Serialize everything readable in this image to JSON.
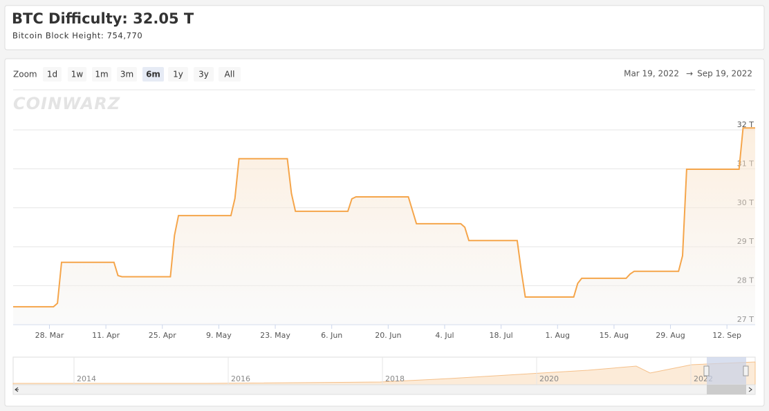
{
  "header": {
    "title": "BTC Difficulty: 32.05 T",
    "subtitle": "Bitcoin Block Height: 754,770"
  },
  "toolbar": {
    "zoom_label": "Zoom",
    "buttons": [
      "1d",
      "1w",
      "1m",
      "3m",
      "6m",
      "1y",
      "3y",
      "All"
    ],
    "selected": "6m",
    "range_from": "Mar 19, 2022",
    "range_arrow": "→",
    "range_to": "Sep 19, 2022"
  },
  "watermark": "COINWARZ",
  "chart_data": {
    "type": "line",
    "color": "#f5a54a",
    "area": true,
    "grid": true,
    "x": [
      "2022-03-19",
      "2022-03-29",
      "2022-03-30",
      "2022-03-31",
      "2022-04-13",
      "2022-04-14",
      "2022-04-15",
      "2022-04-27",
      "2022-04-28",
      "2022-04-29",
      "2022-05-12",
      "2022-05-13",
      "2022-05-14",
      "2022-05-26",
      "2022-05-27",
      "2022-05-28",
      "2022-06-10",
      "2022-06-11",
      "2022-06-12",
      "2022-06-25",
      "2022-06-27",
      "2022-07-08",
      "2022-07-09",
      "2022-07-10",
      "2022-07-22",
      "2022-07-23",
      "2022-07-24",
      "2022-08-05",
      "2022-08-06",
      "2022-08-07",
      "2022-08-18",
      "2022-08-19",
      "2022-08-20",
      "2022-08-31",
      "2022-09-01",
      "2022-09-02",
      "2022-09-15",
      "2022-09-16",
      "2022-09-19"
    ],
    "values": [
      27.46,
      27.46,
      27.55,
      28.6,
      28.6,
      28.26,
      28.23,
      28.23,
      29.29,
      29.8,
      29.8,
      30.24,
      31.26,
      31.26,
      30.37,
      29.91,
      29.91,
      30.23,
      30.28,
      30.28,
      29.59,
      29.59,
      29.5,
      29.16,
      29.16,
      28.38,
      27.71,
      27.71,
      28.06,
      28.19,
      28.19,
      28.3,
      28.37,
      28.37,
      28.77,
      30.99,
      30.99,
      32.05,
      32.05
    ],
    "xlim": [
      "2022-03-19",
      "2022-09-19"
    ],
    "xticks": [
      {
        "value": "2022-03-28",
        "label": "28. Mar"
      },
      {
        "value": "2022-04-11",
        "label": "11. Apr"
      },
      {
        "value": "2022-04-25",
        "label": "25. Apr"
      },
      {
        "value": "2022-05-09",
        "label": "9. May"
      },
      {
        "value": "2022-05-23",
        "label": "23. May"
      },
      {
        "value": "2022-06-06",
        "label": "6. Jun"
      },
      {
        "value": "2022-06-20",
        "label": "20. Jun"
      },
      {
        "value": "2022-07-04",
        "label": "4. Jul"
      },
      {
        "value": "2022-07-18",
        "label": "18. Jul"
      },
      {
        "value": "2022-08-01",
        "label": "1. Aug"
      },
      {
        "value": "2022-08-15",
        "label": "15. Aug"
      },
      {
        "value": "2022-08-29",
        "label": "29. Aug"
      },
      {
        "value": "2022-09-12",
        "label": "12. Sep"
      }
    ],
    "ylim": [
      27,
      33
    ],
    "yticks": [
      {
        "value": 27,
        "label": "27 T"
      },
      {
        "value": 28,
        "label": "28 T"
      },
      {
        "value": 29,
        "label": "29 T"
      },
      {
        "value": 30,
        "label": "30 T"
      },
      {
        "value": 31,
        "label": "31 T"
      },
      {
        "value": 32,
        "label": "32 T"
      }
    ]
  },
  "navigator": {
    "labels": [
      "2014",
      "2016",
      "2018",
      "2020",
      "2022"
    ]
  }
}
